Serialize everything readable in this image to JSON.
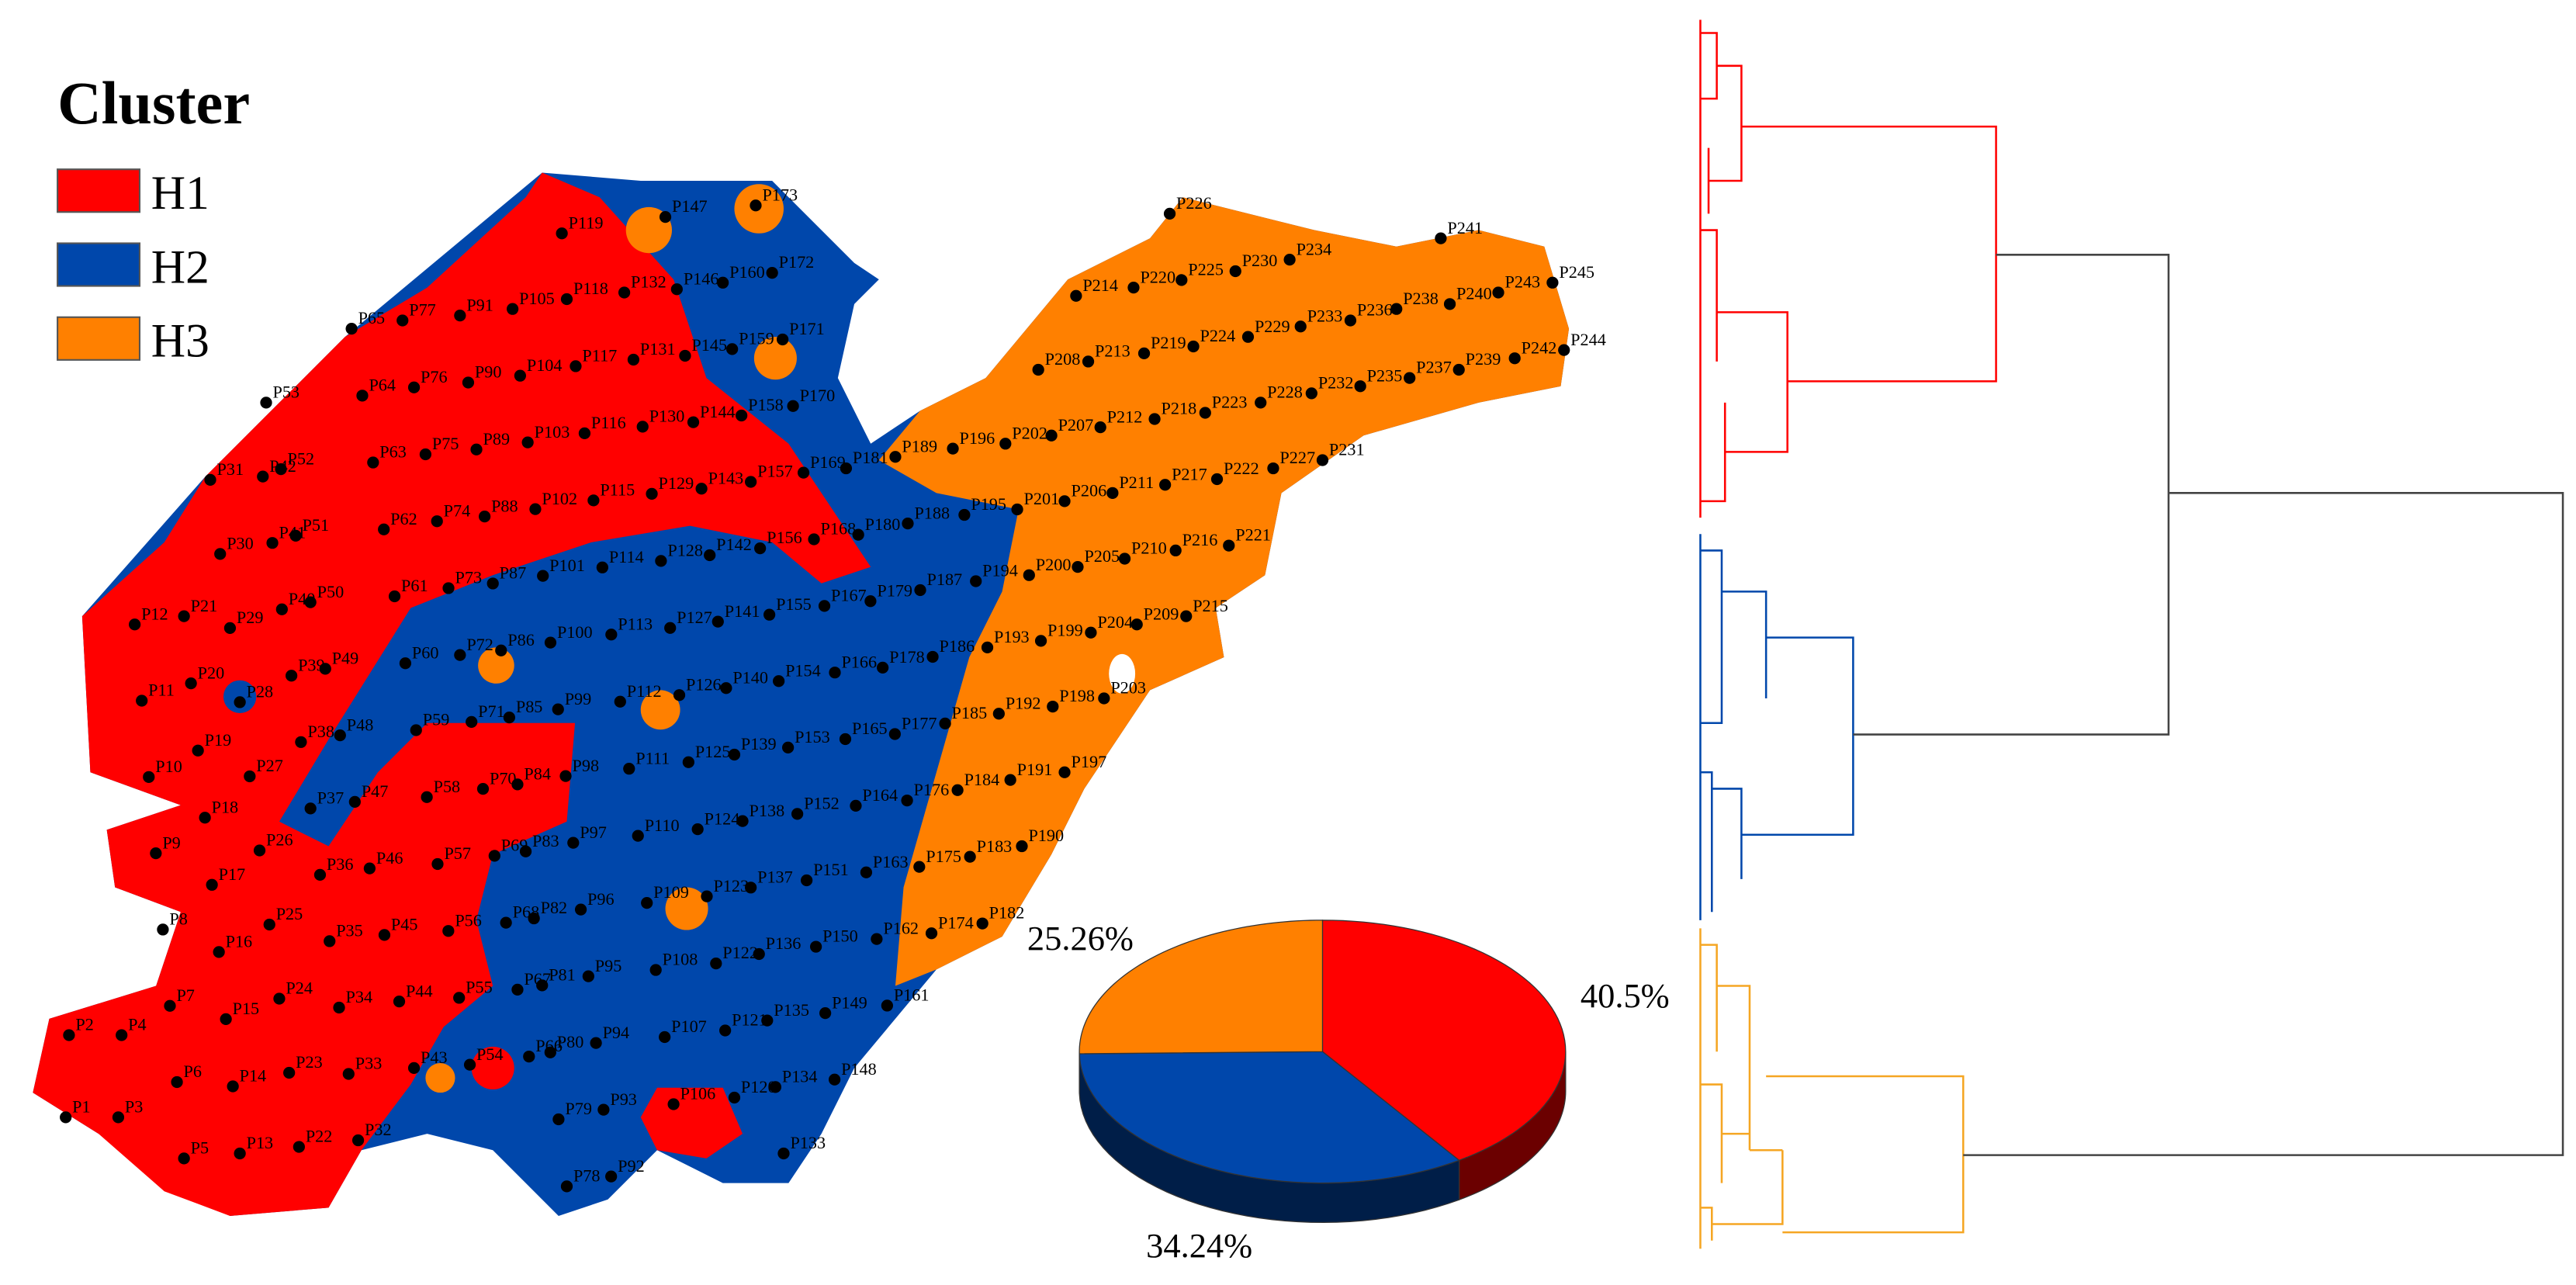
{
  "legend": {
    "title": "Cluster",
    "items": [
      {
        "label": "H1",
        "color": "#ff0000"
      },
      {
        "label": "H2",
        "color": "#0047ab"
      },
      {
        "label": "H3",
        "color": "#ff8000"
      }
    ]
  },
  "chart_data": {
    "type": "pie",
    "values": [
      40.5,
      34.24,
      25.26
    ],
    "value_labels": [
      "40.5%",
      "34.24%",
      "25.26%"
    ],
    "colors": [
      "#ff0000",
      "#0047ab",
      "#ff8000"
    ]
  },
  "map": {
    "points": [
      "P1",
      "P2",
      "P3",
      "P4",
      "P5",
      "P6",
      "P7",
      "P8",
      "P9",
      "P10",
      "P11",
      "P12",
      "P13",
      "P14",
      "P15",
      "P16",
      "P17",
      "P18",
      "P19",
      "P20",
      "P21",
      "P22",
      "P23",
      "P24",
      "P25",
      "P26",
      "P27",
      "P28",
      "P29",
      "P30",
      "P31",
      "P32",
      "P33",
      "P34",
      "P35",
      "P36",
      "P37",
      "P38",
      "P39",
      "P40",
      "P41",
      "P42",
      "P43",
      "P44",
      "P45",
      "P46",
      "P47",
      "P48",
      "P49",
      "P50",
      "P51",
      "P52",
      "P53",
      "P54",
      "P55",
      "P56",
      "P57",
      "P58",
      "P59",
      "P60",
      "P61",
      "P62",
      "P63",
      "P64",
      "P65",
      "P66",
      "P67",
      "P68",
      "P69",
      "P70",
      "P71",
      "P72",
      "P73",
      "P74",
      "P75",
      "P76",
      "P77",
      "P78",
      "P79",
      "P80",
      "P81",
      "P82",
      "P83",
      "P84",
      "P85",
      "P86",
      "P87",
      "P88",
      "P89",
      "P90",
      "P91",
      "P92",
      "P93",
      "P94",
      "P95",
      "P96",
      "P97",
      "P98",
      "P99",
      "P100",
      "P101",
      "P102",
      "P103",
      "P104",
      "P105",
      "P106",
      "P107",
      "P108",
      "P109",
      "P110",
      "P111",
      "P112",
      "P113",
      "P114",
      "P115",
      "P116",
      "P117",
      "P118",
      "P119",
      "P120",
      "P121",
      "P122",
      "P123",
      "P124",
      "P125",
      "P126",
      "P127",
      "P128",
      "P129",
      "P130",
      "P131",
      "P132",
      "P133",
      "P134",
      "P135",
      "P136",
      "P137",
      "P138",
      "P139",
      "P140",
      "P141",
      "P142",
      "P143",
      "P144",
      "P145",
      "P146",
      "P147",
      "P148",
      "P149",
      "P150",
      "P151",
      "P152",
      "P153",
      "P154",
      "P155",
      "P156",
      "P157",
      "P158",
      "P159",
      "P160",
      "P161",
      "P162",
      "P163",
      "P164",
      "P165",
      "P166",
      "P167",
      "P168",
      "P169",
      "P170",
      "P171",
      "P172",
      "P173",
      "P174",
      "P175",
      "P176",
      "P177",
      "P178",
      "P179",
      "P180",
      "P181",
      "P182",
      "P183",
      "P184",
      "P185",
      "P186",
      "P187",
      "P188",
      "P189",
      "P190",
      "P191",
      "P192",
      "P193",
      "P194",
      "P195",
      "P196",
      "P197",
      "P198",
      "P199",
      "P200",
      "P201",
      "P202",
      "P203",
      "P204",
      "P205",
      "P206",
      "P207",
      "P208",
      "P209",
      "P210",
      "P211",
      "P212",
      "P213",
      "P214",
      "P215",
      "P216",
      "P217",
      "P218",
      "P219",
      "P220",
      "P221",
      "P222",
      "P223",
      "P224",
      "P225",
      "P226",
      "P227",
      "P228",
      "P229",
      "P230",
      "P231",
      "P232",
      "P233",
      "P234",
      "P235",
      "P236",
      "P237",
      "P238",
      "P239",
      "P240",
      "P241",
      "P242",
      "P243",
      "P244",
      "P245"
    ]
  }
}
